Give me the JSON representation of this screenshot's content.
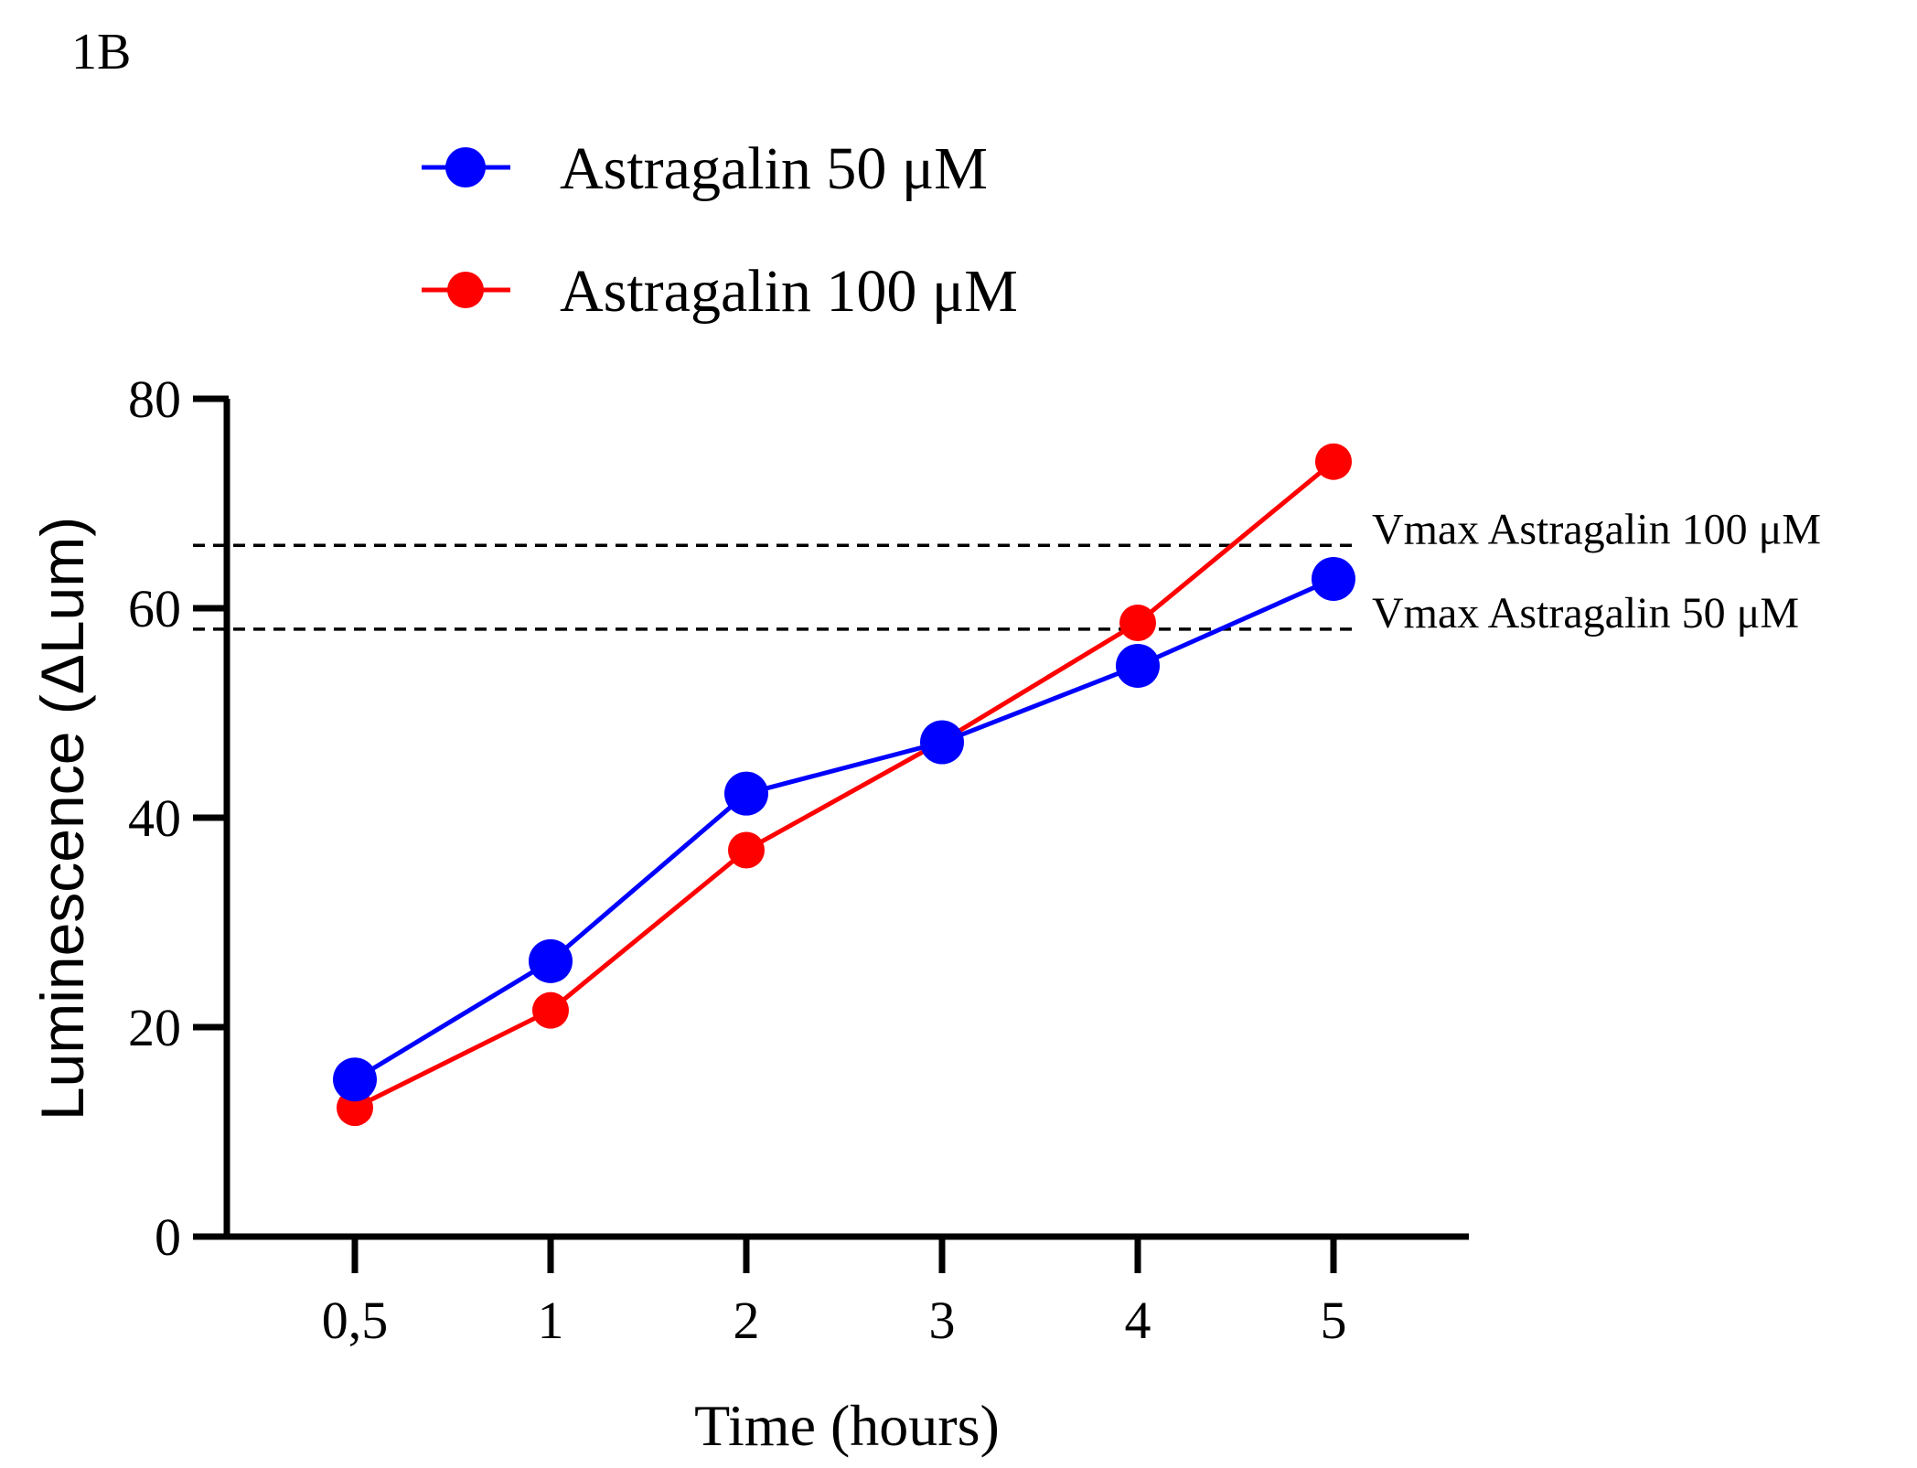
{
  "panel_label": "1B",
  "chart_data": {
    "type": "line",
    "xlabel": "Time (hours)",
    "ylabel": "Luminescence (ΔLum)",
    "categories": [
      "0,5",
      "1",
      "2",
      "3",
      "4",
      "5"
    ],
    "ylim": [
      0,
      80
    ],
    "yticks": [
      0,
      20,
      40,
      60,
      80
    ],
    "grid": false,
    "legend_position": "top-left",
    "series": [
      {
        "name": "Astragalin 50 μM",
        "color": "#0000ff",
        "values": [
          15,
          26.3,
          42.3,
          47.2,
          54.5,
          62.8
        ]
      },
      {
        "name": "Astragalin 100 μM",
        "color": "#ff0000",
        "values": [
          12.3,
          21.6,
          36.9,
          47.3,
          58.6,
          74
        ]
      }
    ],
    "reference_lines": [
      {
        "label": "Vmax Astragalin 100 μM",
        "y": 66
      },
      {
        "label": "Vmax Astragalin 50 μM",
        "y": 58
      }
    ]
  }
}
